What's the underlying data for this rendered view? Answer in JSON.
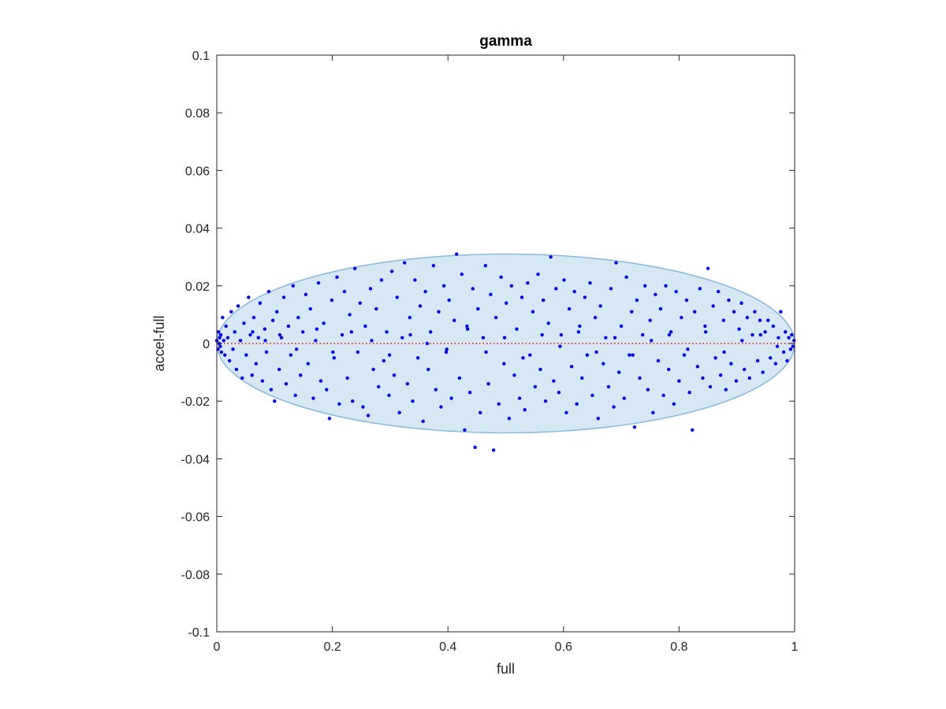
{
  "chart_data": {
    "type": "scatter",
    "title": "gamma",
    "xlabel": "full",
    "ylabel": "accel-full",
    "xlim": [
      0,
      1
    ],
    "ylim": [
      -0.1,
      0.1
    ],
    "x_ticks": [
      {
        "value": 0,
        "label": "0"
      },
      {
        "value": 0.2,
        "label": "0.2"
      },
      {
        "value": 0.4,
        "label": "0.4"
      },
      {
        "value": 0.6,
        "label": "0.6"
      },
      {
        "value": 0.8,
        "label": "0.8"
      },
      {
        "value": 1,
        "label": "1"
      }
    ],
    "y_ticks": [
      {
        "value": 0.1,
        "label": "0.1"
      },
      {
        "value": 0.08,
        "label": "0.08"
      },
      {
        "value": 0.06,
        "label": "0.06"
      },
      {
        "value": 0.04,
        "label": "0.04"
      },
      {
        "value": 0.02,
        "label": "0.02"
      },
      {
        "value": 0,
        "label": "0"
      },
      {
        "value": -0.02,
        "label": "-0.02"
      },
      {
        "value": -0.04,
        "label": "-0.04"
      },
      {
        "value": -0.06,
        "label": "-0.06"
      },
      {
        "value": -0.08,
        "label": "-0.08"
      },
      {
        "value": -0.1,
        "label": "-0.1"
      }
    ],
    "grid": false,
    "colors": {
      "points": "#0000ff",
      "ellipse_fill": "#d6e8f4",
      "ellipse_edge": "#87b9dc",
      "reference_line": "#ff0000"
    },
    "ellipse": {
      "center": [
        0.5,
        0
      ],
      "semi_x": 0.5,
      "semi_y": 0.031
    },
    "reference_line": {
      "y": 0,
      "style": "dotted"
    },
    "points": [
      [
        0.0,
        0.001
      ],
      [
        0.002,
        -0.002
      ],
      [
        0.003,
        0.004
      ],
      [
        0.004,
        0.0
      ],
      [
        0.005,
        0.002
      ],
      [
        0.006,
        -0.001
      ],
      [
        0.007,
        0.003
      ],
      [
        0.008,
        -0.003
      ],
      [
        0.01,
        0.009
      ],
      [
        0.012,
        0.001
      ],
      [
        0.014,
        -0.004
      ],
      [
        0.016,
        0.006
      ],
      [
        0.019,
        0.002
      ],
      [
        0.022,
        -0.006
      ],
      [
        0.025,
        0.011
      ],
      [
        0.028,
        -0.002
      ],
      [
        0.031,
        0.004
      ],
      [
        0.034,
        -0.009
      ],
      [
        0.037,
        0.013
      ],
      [
        0.041,
        0.001
      ],
      [
        0.044,
        -0.012
      ],
      [
        0.047,
        0.007
      ],
      [
        0.051,
        -0.004
      ],
      [
        0.055,
        0.016
      ],
      [
        0.058,
        0.003
      ],
      [
        0.061,
        -0.011
      ],
      [
        0.064,
        0.009
      ],
      [
        0.068,
        -0.007
      ],
      [
        0.072,
        0.002
      ],
      [
        0.075,
        0.014
      ],
      [
        0.079,
        -0.013
      ],
      [
        0.083,
        0.005
      ],
      [
        0.086,
        -0.003
      ],
      [
        0.09,
        0.018
      ],
      [
        0.094,
        -0.016
      ],
      [
        0.097,
        0.008
      ],
      [
        0.1,
        -0.02
      ],
      [
        0.104,
        0.011
      ],
      [
        0.108,
        -0.009
      ],
      [
        0.112,
        0.002
      ],
      [
        0.116,
        0.016
      ],
      [
        0.12,
        -0.014
      ],
      [
        0.124,
        0.006
      ],
      [
        0.128,
        -0.004
      ],
      [
        0.132,
        0.02
      ],
      [
        0.136,
        -0.018
      ],
      [
        0.141,
        0.009
      ],
      [
        0.145,
        -0.011
      ],
      [
        0.149,
        0.004
      ],
      [
        0.154,
        0.017
      ],
      [
        0.158,
        -0.007
      ],
      [
        0.162,
        0.012
      ],
      [
        0.167,
        -0.019
      ],
      [
        0.171,
        0.001
      ],
      [
        0.176,
        0.021
      ],
      [
        0.18,
        -0.013
      ],
      [
        0.185,
        0.007
      ],
      [
        0.19,
        -0.016
      ],
      [
        0.195,
        -0.026
      ],
      [
        0.199,
        0.015
      ],
      [
        0.203,
        -0.005
      ],
      [
        0.208,
        0.023
      ],
      [
        0.212,
        -0.021
      ],
      [
        0.217,
        0.003
      ],
      [
        0.221,
        0.018
      ],
      [
        0.226,
        -0.012
      ],
      [
        0.23,
        0.01
      ],
      [
        0.235,
        -0.02
      ],
      [
        0.239,
        0.026
      ],
      [
        0.244,
        -0.003
      ],
      [
        0.248,
        0.014
      ],
      [
        0.253,
        -0.022
      ],
      [
        0.257,
        0.006
      ],
      [
        0.262,
        -0.025
      ],
      [
        0.266,
        0.019
      ],
      [
        0.271,
        -0.009
      ],
      [
        0.276,
        0.012
      ],
      [
        0.28,
        -0.015
      ],
      [
        0.285,
        0.022
      ],
      [
        0.289,
        -0.006
      ],
      [
        0.294,
        0.004
      ],
      [
        0.298,
        -0.018
      ],
      [
        0.303,
        0.025
      ],
      [
        0.307,
        -0.011
      ],
      [
        0.312,
        0.016
      ],
      [
        0.316,
        -0.024
      ],
      [
        0.321,
        0.002
      ],
      [
        0.325,
        0.028
      ],
      [
        0.33,
        -0.014
      ],
      [
        0.334,
        0.009
      ],
      [
        0.339,
        -0.02
      ],
      [
        0.343,
        0.022
      ],
      [
        0.348,
        -0.005
      ],
      [
        0.352,
        0.013
      ],
      [
        0.357,
        -0.027
      ],
      [
        0.361,
        0.018
      ],
      [
        0.366,
        -0.009
      ],
      [
        0.37,
        0.004
      ],
      [
        0.375,
        0.027
      ],
      [
        0.379,
        -0.016
      ],
      [
        0.384,
        0.011
      ],
      [
        0.388,
        -0.022
      ],
      [
        0.393,
        0.02
      ],
      [
        0.397,
        -0.003
      ],
      [
        0.402,
        0.015
      ],
      [
        0.406,
        -0.019
      ],
      [
        0.411,
        0.008
      ],
      [
        0.415,
        0.031
      ],
      [
        0.42,
        -0.012
      ],
      [
        0.424,
        0.024
      ],
      [
        0.429,
        -0.03
      ],
      [
        0.433,
        0.006
      ],
      [
        0.438,
        -0.017
      ],
      [
        0.443,
        0.019
      ],
      [
        0.447,
        -0.036
      ],
      [
        0.452,
        0.012
      ],
      [
        0.456,
        -0.024
      ],
      [
        0.461,
        0.002
      ],
      [
        0.465,
        0.027
      ],
      [
        0.47,
        -0.014
      ],
      [
        0.474,
        0.017
      ],
      [
        0.479,
        -0.037
      ],
      [
        0.483,
        0.009
      ],
      [
        0.488,
        -0.021
      ],
      [
        0.492,
        0.023
      ],
      [
        0.497,
        -0.007
      ],
      [
        0.501,
        0.014
      ],
      [
        0.506,
        -0.026
      ],
      [
        0.51,
        0.02
      ],
      [
        0.515,
        -0.011
      ],
      [
        0.519,
        0.005
      ],
      [
        0.524,
        -0.019
      ],
      [
        0.528,
        0.016
      ],
      [
        0.533,
        -0.023
      ],
      [
        0.538,
        0.021
      ],
      [
        0.542,
        -0.004
      ],
      [
        0.547,
        0.011
      ],
      [
        0.551,
        -0.015
      ],
      [
        0.556,
        0.024
      ],
      [
        0.56,
        -0.009
      ],
      [
        0.565,
        0.015
      ],
      [
        0.569,
        -0.02
      ],
      [
        0.574,
        0.007
      ],
      [
        0.578,
        0.03
      ],
      [
        0.583,
        -0.013
      ],
      [
        0.587,
        0.019
      ],
      [
        0.592,
        -0.017
      ],
      [
        0.596,
        0.003
      ],
      [
        0.601,
        0.022
      ],
      [
        0.605,
        -0.024
      ],
      [
        0.61,
        0.012
      ],
      [
        0.614,
        -0.008
      ],
      [
        0.619,
        0.018
      ],
      [
        0.623,
        -0.021
      ],
      [
        0.628,
        0.006
      ],
      [
        0.632,
        -0.012
      ],
      [
        0.637,
        0.016
      ],
      [
        0.641,
        -0.004
      ],
      [
        0.646,
        0.021
      ],
      [
        0.65,
        -0.018
      ],
      [
        0.655,
        0.009
      ],
      [
        0.66,
        -0.026
      ],
      [
        0.664,
        0.013
      ],
      [
        0.669,
        -0.007
      ],
      [
        0.673,
        0.002
      ],
      [
        0.678,
        -0.015
      ],
      [
        0.682,
        0.019
      ],
      [
        0.687,
        -0.022
      ],
      [
        0.691,
        0.028
      ],
      [
        0.696,
        -0.01
      ],
      [
        0.7,
        0.006
      ],
      [
        0.705,
        -0.019
      ],
      [
        0.709,
        0.023
      ],
      [
        0.714,
        -0.004
      ],
      [
        0.718,
        0.011
      ],
      [
        0.723,
        -0.029
      ],
      [
        0.727,
        0.015
      ],
      [
        0.732,
        -0.012
      ],
      [
        0.737,
        0.003
      ],
      [
        0.741,
        0.02
      ],
      [
        0.746,
        -0.016
      ],
      [
        0.75,
        0.008
      ],
      [
        0.755,
        -0.024
      ],
      [
        0.759,
        0.017
      ],
      [
        0.764,
        -0.006
      ],
      [
        0.768,
        0.012
      ],
      [
        0.773,
        -0.018
      ],
      [
        0.777,
        0.02
      ],
      [
        0.782,
        -0.009
      ],
      [
        0.786,
        0.004
      ],
      [
        0.791,
        -0.021
      ],
      [
        0.795,
        0.018
      ],
      [
        0.8,
        -0.013
      ],
      [
        0.804,
        0.009
      ],
      [
        0.809,
        -0.004
      ],
      [
        0.813,
        0.015
      ],
      [
        0.818,
        -0.017
      ],
      [
        0.823,
        -0.03
      ],
      [
        0.827,
        0.011
      ],
      [
        0.832,
        -0.008
      ],
      [
        0.836,
        0.019
      ],
      [
        0.841,
        -0.012
      ],
      [
        0.845,
        0.006
      ],
      [
        0.85,
        0.026
      ],
      [
        0.854,
        -0.015
      ],
      [
        0.859,
        0.013
      ],
      [
        0.863,
        -0.005
      ],
      [
        0.868,
        0.018
      ],
      [
        0.872,
        -0.011
      ],
      [
        0.877,
        0.008
      ],
      [
        0.881,
        -0.016
      ],
      [
        0.886,
        0.015
      ],
      [
        0.89,
        -0.007
      ],
      [
        0.895,
        0.011
      ],
      [
        0.899,
        -0.013
      ],
      [
        0.904,
        0.005
      ],
      [
        0.908,
        0.014
      ],
      [
        0.913,
        -0.009
      ],
      [
        0.918,
        0.009
      ],
      [
        0.922,
        -0.012
      ],
      [
        0.927,
        0.003
      ],
      [
        0.931,
        0.011
      ],
      [
        0.936,
        -0.006
      ],
      [
        0.94,
        0.008
      ],
      [
        0.945,
        -0.01
      ],
      [
        0.949,
        0.004
      ],
      [
        0.954,
        0.008
      ],
      [
        0.958,
        -0.005
      ],
      [
        0.963,
        0.006
      ],
      [
        0.967,
        -0.007
      ],
      [
        0.972,
        0.002
      ],
      [
        0.976,
        0.011
      ],
      [
        0.981,
        -0.003
      ],
      [
        0.984,
        0.004
      ],
      [
        0.987,
        -0.006
      ],
      [
        0.99,
        0.002
      ],
      [
        0.993,
        -0.002
      ],
      [
        0.995,
        0.003
      ],
      [
        0.997,
        -0.001
      ],
      [
        0.999,
        0.001
      ],
      [
        0.062,
        0.004
      ],
      [
        0.084,
        0.001
      ],
      [
        0.109,
        0.003
      ],
      [
        0.138,
        -0.002
      ],
      [
        0.173,
        0.005
      ],
      [
        0.201,
        -0.003
      ],
      [
        0.233,
        0.004
      ],
      [
        0.268,
        0.001
      ],
      [
        0.299,
        -0.004
      ],
      [
        0.335,
        0.003
      ],
      [
        0.364,
        0.0
      ],
      [
        0.398,
        -0.002
      ],
      [
        0.434,
        0.005
      ],
      [
        0.466,
        -0.003
      ],
      [
        0.498,
        0.002
      ],
      [
        0.53,
        -0.005
      ],
      [
        0.563,
        0.003
      ],
      [
        0.594,
        -0.001
      ],
      [
        0.626,
        0.004
      ],
      [
        0.657,
        -0.003
      ],
      [
        0.689,
        0.002
      ],
      [
        0.72,
        -0.004
      ],
      [
        0.752,
        0.001
      ],
      [
        0.783,
        0.003
      ],
      [
        0.815,
        -0.002
      ],
      [
        0.846,
        0.004
      ],
      [
        0.878,
        -0.003
      ],
      [
        0.909,
        0.001
      ],
      [
        0.941,
        0.003
      ],
      [
        0.97,
        -0.001
      ]
    ]
  }
}
